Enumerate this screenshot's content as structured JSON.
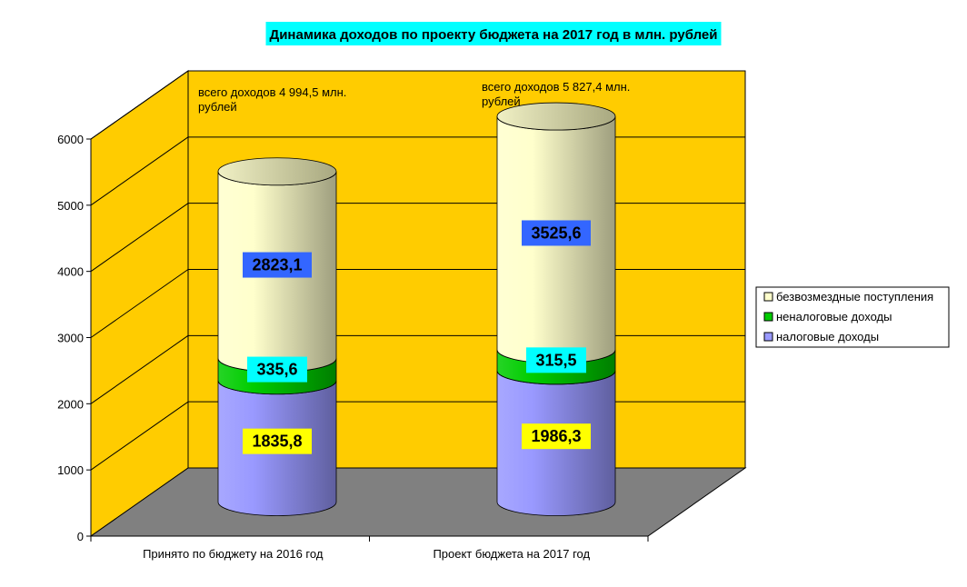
{
  "chart_data": {
    "type": "bar",
    "stacked": true,
    "title": "Динамика доходов по проекту бюджета на 2017 год в млн. рублей",
    "categories": [
      "Принято по бюджету на 2016 год",
      "Проект бюджета на 2017 год"
    ],
    "series": [
      {
        "name": "налоговые доходы",
        "values": [
          1835.8,
          1986.3
        ],
        "labels": [
          "1835,8",
          "1986,3"
        ],
        "color": "#9999ff",
        "label_bg": "#ffff00",
        "label_color": "#000000"
      },
      {
        "name": "неналоговые доходы",
        "values": [
          335.6,
          315.5
        ],
        "labels": [
          "335,6",
          "315,5"
        ],
        "color": "#00cc00",
        "label_bg": "#00ffff",
        "label_color": "#000000"
      },
      {
        "name": "безвозмездные поступления",
        "values": [
          2823.1,
          3525.6
        ],
        "labels": [
          "2823,1",
          "3525,6"
        ],
        "color": "#ffffcc",
        "label_bg": "#3366ff",
        "label_color": "#000000"
      }
    ],
    "annotations": [
      {
        "line1": "всего доходов 4 994,5 млн.",
        "line2": "рублей"
      },
      {
        "line1": "всего доходов 5 827,4 млн.",
        "line2": "рублей"
      }
    ],
    "ylim": [
      0,
      6000
    ],
    "yticks": [
      0,
      1000,
      2000,
      3000,
      4000,
      5000,
      6000
    ],
    "grid": true,
    "legend": "right",
    "colors": {
      "wall": "#ffcc00",
      "floor": "#808080",
      "title_bg": "#00ffff"
    }
  }
}
